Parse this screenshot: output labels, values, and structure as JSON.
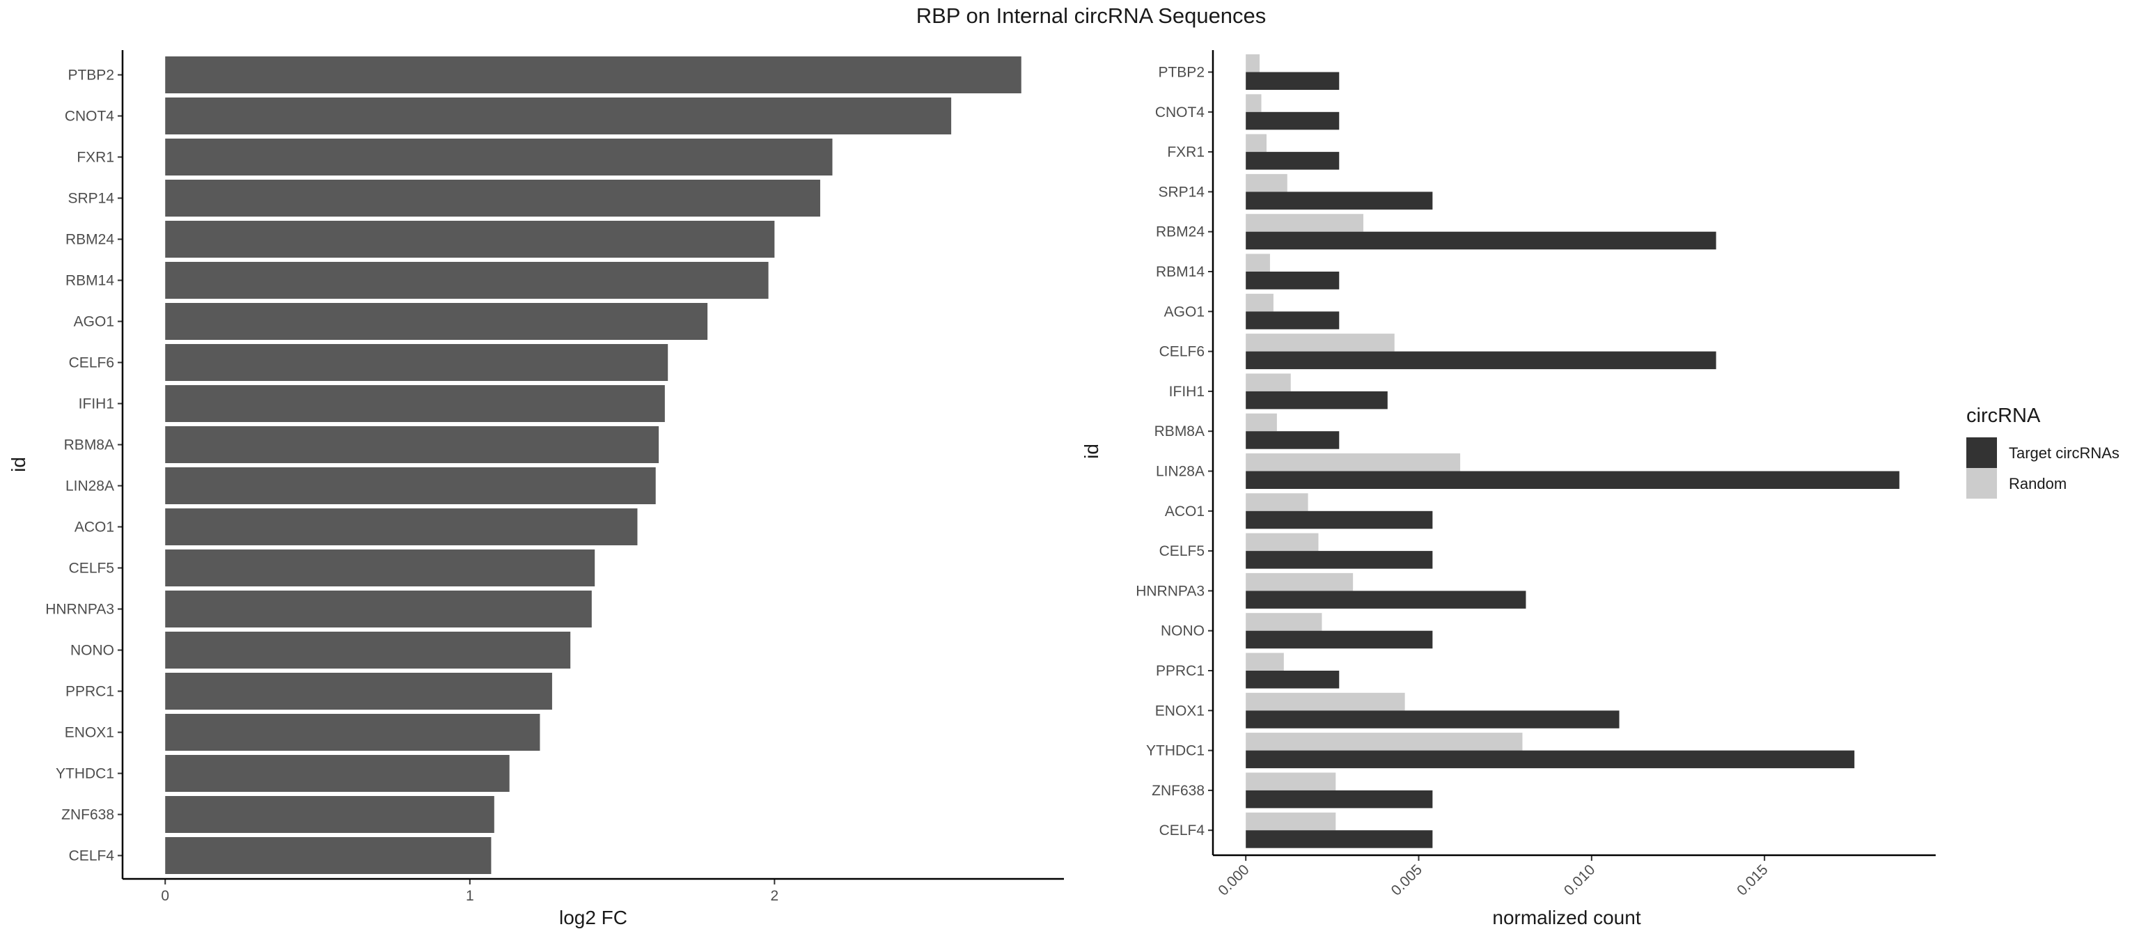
{
  "title": "RBP on Internal circRNA Sequences",
  "colors": {
    "left_bar": "#595959",
    "target": "#333333",
    "random": "#cccccc",
    "axis": "#000000",
    "text": "#1a1a1a",
    "tick_text": "#4d4d4d"
  },
  "chart_data": [
    {
      "type": "bar",
      "orientation": "horizontal",
      "xlabel": "log2 FC",
      "ylabel": "id",
      "xlim": [
        -0.14,
        2.95
      ],
      "xticks": [
        0,
        1,
        2
      ],
      "grid": false,
      "categories": [
        "PTBP2",
        "CNOT4",
        "FXR1",
        "SRP14",
        "RBM24",
        "RBM14",
        "AGO1",
        "CELF6",
        "IFIH1",
        "RBM8A",
        "LIN28A",
        "ACO1",
        "CELF5",
        "HNRNPA3",
        "NONO",
        "PPRC1",
        "ENOX1",
        "YTHDC1",
        "ZNF638",
        "CELF4"
      ],
      "values": [
        2.81,
        2.58,
        2.19,
        2.15,
        2.0,
        1.98,
        1.78,
        1.65,
        1.64,
        1.62,
        1.61,
        1.55,
        1.41,
        1.4,
        1.33,
        1.27,
        1.23,
        1.13,
        1.08,
        1.07
      ]
    },
    {
      "type": "bar",
      "orientation": "horizontal",
      "grouped": true,
      "xlabel": "normalized count",
      "ylabel": "id",
      "xlim": [
        -0.00095,
        0.01995
      ],
      "xticks": [
        0.0,
        0.005,
        0.01,
        0.015
      ],
      "xtick_labels": [
        "0.000",
        "0.005",
        "0.010",
        "0.015"
      ],
      "grid": false,
      "legend": {
        "title": "circRNA",
        "position": "right"
      },
      "categories": [
        "PTBP2",
        "CNOT4",
        "FXR1",
        "SRP14",
        "RBM24",
        "RBM14",
        "AGO1",
        "CELF6",
        "IFIH1",
        "RBM8A",
        "LIN28A",
        "ACO1",
        "CELF5",
        "HNRNPA3",
        "NONO",
        "PPRC1",
        "ENOX1",
        "YTHDC1",
        "ZNF638",
        "CELF4"
      ],
      "series": [
        {
          "name": "Target circRNAs",
          "color": "#333333",
          "values": [
            0.0027,
            0.0027,
            0.0027,
            0.0054,
            0.0136,
            0.0027,
            0.0027,
            0.0136,
            0.0041,
            0.0027,
            0.0189,
            0.0054,
            0.0054,
            0.0081,
            0.0054,
            0.0027,
            0.0108,
            0.0176,
            0.0054,
            0.0054
          ]
        },
        {
          "name": "Random",
          "color": "#cccccc",
          "values": [
            0.0004,
            0.00045,
            0.0006,
            0.0012,
            0.0034,
            0.0007,
            0.0008,
            0.0043,
            0.0013,
            0.0009,
            0.0062,
            0.0018,
            0.0021,
            0.0031,
            0.0022,
            0.0011,
            0.0046,
            0.008,
            0.0026,
            0.0026
          ]
        }
      ]
    }
  ]
}
